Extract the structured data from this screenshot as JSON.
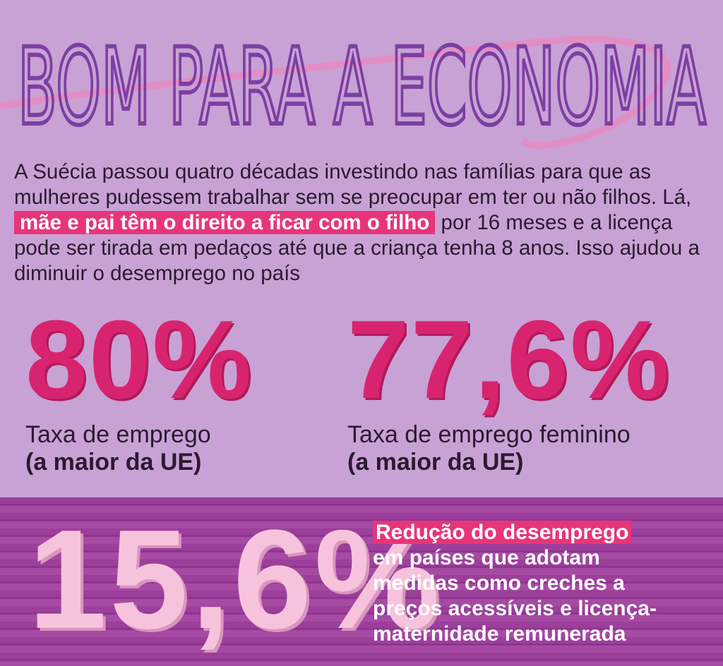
{
  "title": "BOM PARA A ECONOMIA",
  "intro": {
    "before": "A Suécia passou quatro décadas investindo nas famílias para que as mulheres pudessem trabalhar sem se preocupar em ter ou não filhos. Lá, ",
    "highlight": "mãe e pai têm o direito a ficar com o filho",
    "after": " por 16 meses e a licença pode ser tirada em pedaços até que a criança tenha 8 anos. Isso ajudou a diminuir o desemprego no país"
  },
  "stats": [
    {
      "value": "80%",
      "label": "Taxa de emprego",
      "note": "(a maior da UE)"
    },
    {
      "value": "77,6%",
      "label": "Taxa de emprego feminino",
      "note": "(a maior da UE)"
    }
  ],
  "band": {
    "value": "15,6%",
    "highlight": "Redução do desemprego",
    "lines": [
      "em países que adotam",
      "medidas como creches a",
      "preços acessíveis e licença-",
      "maternidade remunerada"
    ]
  }
}
